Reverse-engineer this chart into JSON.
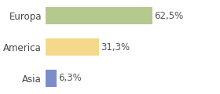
{
  "categories": [
    "Asia",
    "America",
    "Europa"
  ],
  "values": [
    6.3,
    31.3,
    62.5
  ],
  "labels": [
    "6,3%",
    "31,3%",
    "62,5%"
  ],
  "bar_colors": [
    "#7b8ec8",
    "#f5d98b",
    "#b5c98e"
  ],
  "xlim": [
    0,
    100
  ],
  "background_color": "#ffffff",
  "label_fontsize": 8.5,
  "tick_fontsize": 8.5,
  "bar_height": 0.55
}
